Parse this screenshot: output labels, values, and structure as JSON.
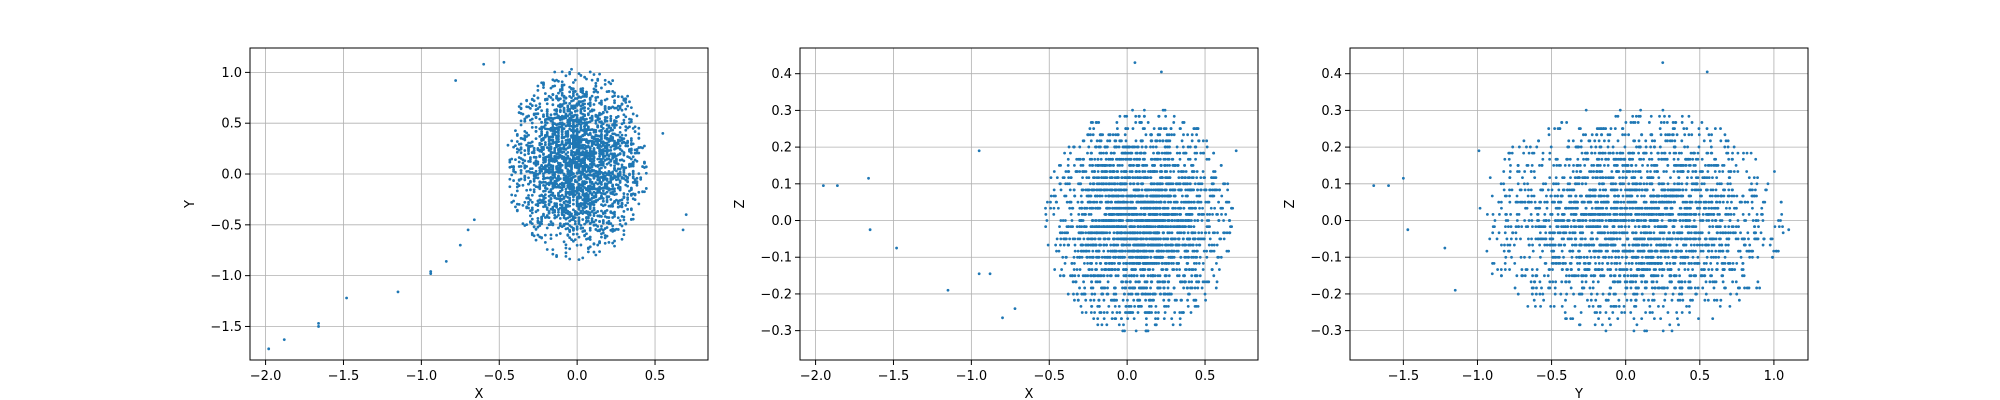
{
  "chart_data": [
    {
      "type": "scatter",
      "xlabel": "X",
      "ylabel": "Y",
      "xlim": [
        -2.1,
        0.84
      ],
      "ylim": [
        -1.83,
        1.24
      ],
      "xticks": [
        -2.0,
        -1.5,
        -1.0,
        -0.5,
        0.0,
        0.5
      ],
      "xtick_labels": [
        "−2.0",
        "−1.5",
        "−1.0",
        "−0.5",
        "0.0",
        "0.5"
      ],
      "yticks": [
        -1.5,
        -1.0,
        -0.5,
        0.0,
        0.5,
        1.0
      ],
      "ytick_labels": [
        "−1.5",
        "−1.0",
        "−0.5",
        "0.0",
        "0.5",
        "1.0"
      ],
      "grid": true,
      "marker_color": "#1f77b4",
      "outliers": [
        [
          -1.98,
          -1.72
        ],
        [
          -1.88,
          -1.63
        ],
        [
          -1.66,
          -1.47
        ],
        [
          -1.66,
          -1.5
        ],
        [
          -1.48,
          -1.22
        ],
        [
          -1.15,
          -1.16
        ],
        [
          -0.94,
          -0.96
        ],
        [
          -0.94,
          -0.98
        ],
        [
          -0.84,
          -0.86
        ],
        [
          -0.75,
          -0.7
        ],
        [
          -0.7,
          -0.55
        ],
        [
          -0.66,
          -0.45
        ],
        [
          -0.78,
          0.92
        ],
        [
          -0.6,
          1.08
        ],
        [
          -0.47,
          1.1
        ],
        [
          0.7,
          -0.4
        ],
        [
          0.68,
          -0.55
        ],
        [
          0.55,
          0.4
        ]
      ],
      "cluster": {
        "center": [
          0.0,
          0.1
        ],
        "spread": [
          0.46,
          0.95
        ],
        "stripes": true
      }
    },
    {
      "type": "scatter",
      "xlabel": "X",
      "ylabel": "Z",
      "xlim": [
        -2.1,
        0.84
      ],
      "ylim": [
        -0.38,
        0.47
      ],
      "xticks": [
        -2.0,
        -1.5,
        -1.0,
        -0.5,
        0.0,
        0.5
      ],
      "xtick_labels": [
        "−2.0",
        "−1.5",
        "−1.0",
        "−0.5",
        "0.0",
        "0.5"
      ],
      "yticks": [
        -0.3,
        -0.2,
        -0.1,
        0.0,
        0.1,
        0.2,
        0.3,
        0.4
      ],
      "ytick_labels": [
        "−0.3",
        "−0.2",
        "−0.1",
        "0.0",
        "0.1",
        "0.2",
        "0.3",
        "0.4"
      ],
      "grid": true,
      "marker_color": "#1f77b4",
      "outliers": [
        [
          -1.95,
          0.095
        ],
        [
          -1.86,
          0.095
        ],
        [
          -1.66,
          0.115
        ],
        [
          -1.65,
          -0.025
        ],
        [
          -1.48,
          -0.075
        ],
        [
          -1.15,
          -0.19
        ],
        [
          -0.95,
          0.19
        ],
        [
          -0.95,
          -0.145
        ],
        [
          -0.88,
          -0.145
        ],
        [
          -0.8,
          -0.265
        ],
        [
          -0.72,
          -0.24
        ],
        [
          0.05,
          0.43
        ],
        [
          0.22,
          0.405
        ],
        [
          0.7,
          0.19
        ]
      ],
      "cluster": {
        "center": [
          0.08,
          0.0
        ],
        "spread": [
          0.62,
          0.31
        ],
        "rows": 0.0167
      }
    },
    {
      "type": "scatter",
      "xlabel": "Y",
      "ylabel": "Z",
      "xlim": [
        -1.86,
        1.23
      ],
      "ylim": [
        -0.38,
        0.47
      ],
      "xticks": [
        -1.5,
        -1.0,
        -0.5,
        0.0,
        0.5,
        1.0
      ],
      "xtick_labels": [
        "−1.5",
        "−1.0",
        "−0.5",
        "0.0",
        "0.5",
        "1.0"
      ],
      "yticks": [
        -0.3,
        -0.2,
        -0.1,
        0.0,
        0.1,
        0.2,
        0.3,
        0.4
      ],
      "ytick_labels": [
        "−0.3",
        "−0.2",
        "−0.1",
        "0.0",
        "0.1",
        "0.2",
        "0.3",
        "0.4"
      ],
      "grid": true,
      "marker_color": "#1f77b4",
      "outliers": [
        [
          -1.7,
          0.095
        ],
        [
          -1.6,
          0.095
        ],
        [
          -1.5,
          0.115
        ],
        [
          -1.47,
          -0.025
        ],
        [
          -1.22,
          -0.075
        ],
        [
          -1.15,
          -0.19
        ],
        [
          -0.99,
          0.19
        ],
        [
          -0.9,
          -0.145
        ],
        [
          0.25,
          0.43
        ],
        [
          0.55,
          0.405
        ],
        [
          1.1,
          -0.025
        ],
        [
          1.05,
          0.05
        ]
      ],
      "cluster": {
        "center": [
          0.05,
          0.0
        ],
        "spread": [
          1.05,
          0.31
        ],
        "rows": 0.0167
      }
    }
  ]
}
